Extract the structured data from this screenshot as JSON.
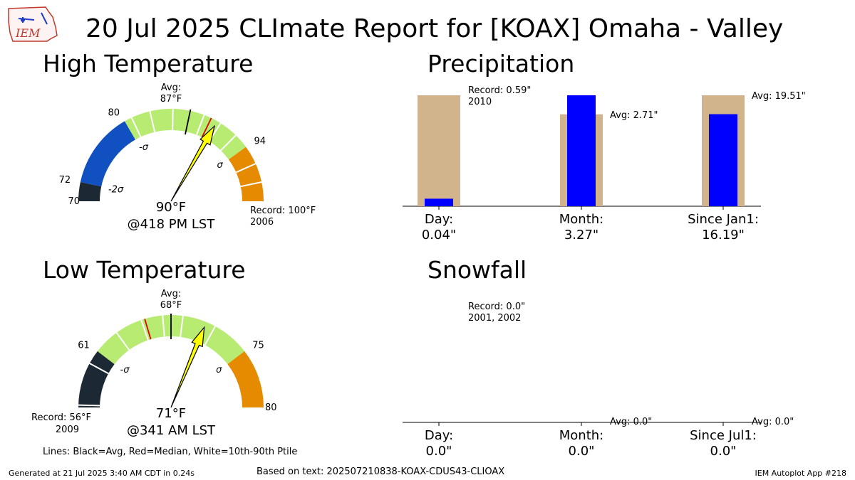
{
  "header": {
    "title": "20 Jul 2025 CLImate Report for [KOAX] Omaha - Valley",
    "logo_text": "IEM"
  },
  "panels": {
    "high_title": "High Temperature",
    "low_title": "Low Temperature",
    "precip_title": "Precipitation",
    "snow_title": "Snowfall"
  },
  "gauges": {
    "high": {
      "min": 70,
      "max": 100,
      "bands": [
        {
          "from": 70,
          "to": 72,
          "color": "#1c2833"
        },
        {
          "from": 72,
          "to": 80,
          "color": "#1050c0"
        },
        {
          "from": 80,
          "to": 94,
          "color": "#b8eb72"
        },
        {
          "from": 94,
          "to": 100,
          "color": "#e68a00"
        }
      ],
      "white_lines": [
        80.8,
        82.8,
        85.2,
        88.5,
        90.4,
        92.4,
        96,
        98
      ],
      "avg": 87,
      "median": 89.3,
      "obs": 90,
      "tick_labels": [
        {
          "value": 70,
          "text": "70"
        },
        {
          "value": 72,
          "text": "72"
        },
        {
          "value": 80,
          "text": "80"
        },
        {
          "value": 94,
          "text": "94"
        }
      ],
      "sigma_labels": [
        {
          "value": 72,
          "text": "-2σ"
        },
        {
          "value": 80,
          "text": "-σ"
        },
        {
          "value": 94,
          "text": "σ"
        }
      ],
      "avg_label": [
        "Avg:",
        "87°F"
      ],
      "record_label": [
        "Record: 100°F",
        "2006"
      ],
      "value_label": "90°F",
      "time_label": "@418 PM LST"
    },
    "low": {
      "min": 56,
      "max": 80,
      "bands": [
        {
          "from": 56,
          "to": 61,
          "color": "#1c2833"
        },
        {
          "from": 61,
          "to": 75,
          "color": "#b8eb72"
        },
        {
          "from": 75,
          "to": 80,
          "color": "#e68a00"
        }
      ],
      "white_lines": [
        56.2,
        59.8,
        63.2,
        65.5,
        67.3,
        69,
        71.8
      ],
      "avg": 68,
      "median": 65.8,
      "obs": 71,
      "tick_labels": [
        {
          "value": 61,
          "text": "61"
        },
        {
          "value": 75,
          "text": "75"
        },
        {
          "value": 80,
          "text": "80"
        }
      ],
      "sigma_labels": [
        {
          "value": 61,
          "text": "-σ"
        },
        {
          "value": 75,
          "text": "σ"
        }
      ],
      "avg_label": [
        "Avg:",
        "68°F"
      ],
      "record_label": [
        "Record: 56°F",
        "2009"
      ],
      "value_label": "71°F",
      "time_label": "@341 AM LST"
    },
    "legend_note": "Lines: Black=Avg, Red=Median, White=10th-90th Ptile"
  },
  "chart_data": [
    {
      "type": "bar",
      "title": "Precipitation",
      "categories": [
        "Day",
        "Month",
        "Since Jan1"
      ],
      "series": [
        {
          "name": "Observed",
          "values": [
            0.04,
            3.27,
            16.19
          ],
          "color": "#0000ff"
        }
      ],
      "average": [
        null,
        2.71,
        19.51
      ],
      "record": [
        0.59,
        null,
        null
      ],
      "background_color": "#d2b48c",
      "annotations": [
        {
          "category": 0,
          "lines": [
            "Record: 0.59\"",
            "2010"
          ]
        },
        {
          "category": 1,
          "lines": [
            "Avg: 2.71\""
          ]
        },
        {
          "category": 2,
          "lines": [
            "Avg: 19.51\""
          ]
        }
      ],
      "xtick_labels": [
        [
          "Day:",
          "0.04\""
        ],
        [
          "Month:",
          "3.27\""
        ],
        [
          "Since Jan1:",
          "16.19\""
        ]
      ]
    },
    {
      "type": "bar",
      "title": "Snowfall",
      "categories": [
        "Day",
        "Month",
        "Since Jul1"
      ],
      "series": [
        {
          "name": "Observed",
          "values": [
            0.0,
            0.0,
            0.0
          ],
          "color": "#0000ff"
        }
      ],
      "average": [
        null,
        0.0,
        0.0
      ],
      "record": [
        0.0,
        null,
        null
      ],
      "annotations": [
        {
          "category": 0,
          "lines": [
            "Record: 0.0\"",
            "2001, 2002"
          ]
        },
        {
          "category": 1,
          "lines": [
            "Avg: 0.0\""
          ]
        },
        {
          "category": 2,
          "lines": [
            "Avg: 0.0\""
          ]
        }
      ],
      "xtick_labels": [
        [
          "Day:",
          "0.0\""
        ],
        [
          "Month:",
          "0.0\""
        ],
        [
          "Since Jul1:",
          "0.0\""
        ]
      ]
    }
  ],
  "footer": {
    "generated": "Generated at 21 Jul 2025 3:40 AM CDT in 0.24s",
    "based_on": "Based on text: 202507210838-KOAX-CDUS43-CLIOAX",
    "app": "IEM Autoplot App #218"
  }
}
